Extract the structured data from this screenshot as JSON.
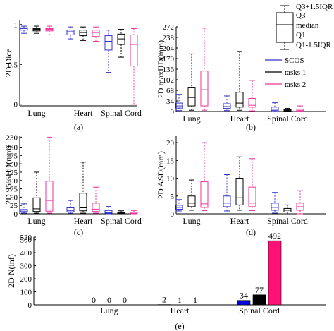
{
  "colors": {
    "scos": "#3333cc",
    "tasks1": "#000000",
    "tasks2": "#ee3399",
    "bar_scos": "#0000dd",
    "bar_tasks1": "#000000",
    "bar_tasks2": "#ff1177"
  },
  "legend": {
    "box_labels": [
      "Q3+1.5IQR",
      "Q3",
      "median",
      "Q1",
      "Q1-1.5IQR"
    ],
    "series": [
      "SCOS",
      "tasks 1",
      "tasks 2"
    ]
  },
  "chart_data": [
    {
      "id": "a",
      "type": "boxplot",
      "caption": "(a)",
      "ylabel": "2D Dice",
      "ylim": [
        -0.02,
        1.06
      ],
      "yticks": [
        0,
        0.5,
        1
      ],
      "ytick_labels": [
        "0",
        "0.5",
        "1"
      ],
      "categories": [
        "Lung",
        "Heart",
        "Spinal Cord"
      ],
      "series": [
        {
          "name": "SCOS",
          "boxes": [
            {
              "wl": 0.89,
              "q1": 0.93,
              "med": 0.95,
              "q3": 0.96,
              "wh": 0.98
            },
            {
              "wl": 0.82,
              "q1": 0.87,
              "med": 0.91,
              "q3": 0.93,
              "wh": 0.97
            },
            {
              "wl": 0.4,
              "q1": 0.68,
              "med": 0.79,
              "q3": 0.86,
              "wh": 0.93
            }
          ]
        },
        {
          "name": "tasks 1",
          "boxes": [
            {
              "wl": 0.89,
              "q1": 0.92,
              "med": 0.94,
              "q3": 0.95,
              "wh": 0.98
            },
            {
              "wl": 0.8,
              "q1": 0.86,
              "med": 0.9,
              "q3": 0.93,
              "wh": 0.97
            },
            {
              "wl": 0.59,
              "q1": 0.75,
              "med": 0.82,
              "q3": 0.88,
              "wh": 0.94
            }
          ]
        },
        {
          "name": "tasks 2",
          "boxes": [
            {
              "wl": 0.87,
              "q1": 0.92,
              "med": 0.94,
              "q3": 0.95,
              "wh": 0.98
            },
            {
              "wl": 0.79,
              "q1": 0.85,
              "med": 0.9,
              "q3": 0.93,
              "wh": 0.97
            },
            {
              "wl": 0.0,
              "q1": 0.48,
              "med": 0.75,
              "q3": 0.87,
              "wh": 0.95
            }
          ]
        }
      ]
    },
    {
      "id": "b",
      "type": "boxplot",
      "caption": "(b)",
      "ylabel": "2D maxHD(mm)",
      "ylim": [
        0,
        272
      ],
      "yticks": [
        0,
        34,
        68,
        102,
        136,
        170,
        204,
        238,
        272
      ],
      "ytick_labels": [
        "0",
        "34",
        "68",
        "102",
        "136",
        "170",
        "204",
        "238",
        "272"
      ],
      "categories": [
        "Lung",
        "Heart",
        "Spinal Cord"
      ],
      "series": [
        {
          "name": "SCOS",
          "boxes": [
            {
              "wl": 3,
              "q1": 11,
              "med": 18,
              "q3": 27,
              "wh": 55
            },
            {
              "wl": 3,
              "q1": 10,
              "med": 16,
              "q3": 25,
              "wh": 50
            },
            {
              "wl": 0,
              "q1": 3,
              "med": 7,
              "q3": 14,
              "wh": 28
            }
          ]
        },
        {
          "name": "tasks 1",
          "boxes": [
            {
              "wl": 4,
              "q1": 18,
              "med": 45,
              "q3": 78,
              "wh": 185
            },
            {
              "wl": 4,
              "q1": 14,
              "med": 27,
              "q3": 62,
              "wh": 193
            },
            {
              "wl": 0,
              "q1": 2,
              "med": 4,
              "q3": 6,
              "wh": 10
            }
          ]
        },
        {
          "name": "tasks 2",
          "boxes": [
            {
              "wl": 4,
              "q1": 18,
              "med": 70,
              "q3": 130,
              "wh": 268
            },
            {
              "wl": 2,
              "q1": 14,
              "med": 20,
              "q3": 42,
              "wh": 100
            },
            {
              "wl": 0,
              "q1": 1,
              "med": 3,
              "q3": 7,
              "wh": 18
            }
          ]
        }
      ]
    },
    {
      "id": "c",
      "type": "boxplot",
      "caption": "(c)",
      "ylabel": "2D 95%HD(mm)",
      "ylim": [
        0,
        235
      ],
      "yticks": [
        0,
        25,
        50,
        75,
        100,
        125,
        150,
        175,
        200,
        230
      ],
      "ytick_labels": [
        "0",
        "25",
        "50",
        "75",
        "100",
        "125",
        "150",
        "175",
        "200",
        "230"
      ],
      "categories": [
        "Lung",
        "Heart",
        "Spinal Cord"
      ],
      "series": [
        {
          "name": "SCOS",
          "boxes": [
            {
              "wl": 2,
              "q1": 5,
              "med": 8,
              "q3": 13,
              "wh": 30
            },
            {
              "wl": 2,
              "q1": 6,
              "med": 10,
              "q3": 18,
              "wh": 40
            },
            {
              "wl": 0,
              "q1": 2,
              "med": 4,
              "q3": 10,
              "wh": 22
            }
          ]
        },
        {
          "name": "tasks 1",
          "boxes": [
            {
              "wl": 2,
              "q1": 7,
              "med": 15,
              "q3": 48,
              "wh": 125
            },
            {
              "wl": 2,
              "q1": 9,
              "med": 18,
              "q3": 62,
              "wh": 155
            },
            {
              "wl": 0,
              "q1": 1,
              "med": 2,
              "q3": 4,
              "wh": 9
            }
          ]
        },
        {
          "name": "tasks 2",
          "boxes": [
            {
              "wl": 2,
              "q1": 8,
              "med": 40,
              "q3": 98,
              "wh": 230
            },
            {
              "wl": 2,
              "q1": 7,
              "med": 14,
              "q3": 32,
              "wh": 80
            },
            {
              "wl": 0,
              "q1": 1,
              "med": 2,
              "q3": 5,
              "wh": 10
            }
          ]
        }
      ]
    },
    {
      "id": "d",
      "type": "boxplot",
      "caption": "(d)",
      "ylabel": "2D ASD(mm)",
      "ylim": [
        0,
        22
      ],
      "yticks": [
        0,
        5,
        10,
        15,
        20
      ],
      "ytick_labels": [
        "0",
        "5",
        "10",
        "15",
        "20"
      ],
      "categories": [
        "Lung",
        "Heart",
        "Spinal Cord"
      ],
      "series": [
        {
          "name": "SCOS",
          "boxes": [
            {
              "wl": 0.8,
              "q1": 1.3,
              "med": 1.8,
              "q3": 2.4,
              "wh": 4.0
            },
            {
              "wl": 0.8,
              "q1": 2.0,
              "med": 3.0,
              "q3": 5.0,
              "wh": 11.0
            },
            {
              "wl": 0.2,
              "q1": 1.0,
              "med": 1.8,
              "q3": 3.0,
              "wh": 6.0
            }
          ]
        },
        {
          "name": "tasks 1",
          "boxes": [
            {
              "wl": 1.0,
              "q1": 2.0,
              "med": 3.0,
              "q3": 5.0,
              "wh": 9.5
            },
            {
              "wl": 1.0,
              "q1": 2.5,
              "med": 4.5,
              "q3": 10.0,
              "wh": 16.0
            },
            {
              "wl": 0.0,
              "q1": 0.5,
              "med": 1.0,
              "q3": 1.5,
              "wh": 2.5
            }
          ]
        },
        {
          "name": "tasks 2",
          "boxes": [
            {
              "wl": 0.9,
              "q1": 1.8,
              "med": 2.8,
              "q3": 9.0,
              "wh": 20.0
            },
            {
              "wl": 0.9,
              "q1": 2.0,
              "med": 3.0,
              "q3": 7.5,
              "wh": 15.5
            },
            {
              "wl": 0.0,
              "q1": 1.0,
              "med": 2.0,
              "q3": 3.0,
              "wh": 6.5
            }
          ]
        }
      ]
    },
    {
      "id": "e",
      "type": "bar",
      "caption": "(e)",
      "ylabel": "2D N(inf)",
      "ylim": [
        0,
        520
      ],
      "yticks": [
        0,
        100,
        200,
        300,
        400,
        500,
        520
      ],
      "ytick_labels": [
        "0",
        "100",
        "200",
        "300",
        "400",
        "500",
        "520"
      ],
      "categories": [
        "Lung",
        "Heart",
        "Spinal Cord"
      ],
      "series": [
        {
          "name": "SCOS",
          "values": [
            0,
            2,
            34
          ]
        },
        {
          "name": "tasks 1",
          "values": [
            0,
            1,
            77
          ]
        },
        {
          "name": "tasks 2",
          "values": [
            0,
            1,
            492
          ]
        }
      ]
    }
  ]
}
